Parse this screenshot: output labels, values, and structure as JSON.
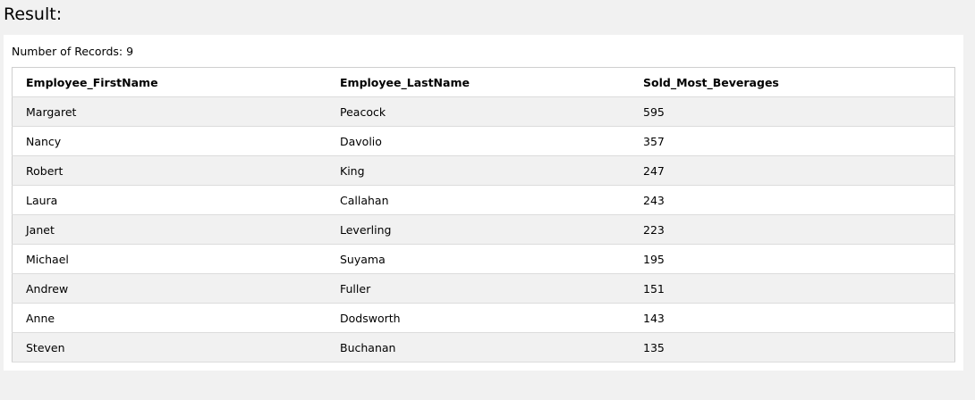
{
  "heading": "Result:",
  "record_count": {
    "label": "Number of Records:",
    "value": "9"
  },
  "table": {
    "columns": [
      "Employee_FirstName",
      "Employee_LastName",
      "Sold_Most_Beverages"
    ],
    "rows": [
      [
        "Margaret",
        "Peacock",
        "595"
      ],
      [
        "Nancy",
        "Davolio",
        "357"
      ],
      [
        "Robert",
        "King",
        "247"
      ],
      [
        "Laura",
        "Callahan",
        "243"
      ],
      [
        "Janet",
        "Leverling",
        "223"
      ],
      [
        "Michael",
        "Suyama",
        "195"
      ],
      [
        "Andrew",
        "Fuller",
        "151"
      ],
      [
        "Anne",
        "Dodsworth",
        "143"
      ],
      [
        "Steven",
        "Buchanan",
        "135"
      ]
    ]
  }
}
